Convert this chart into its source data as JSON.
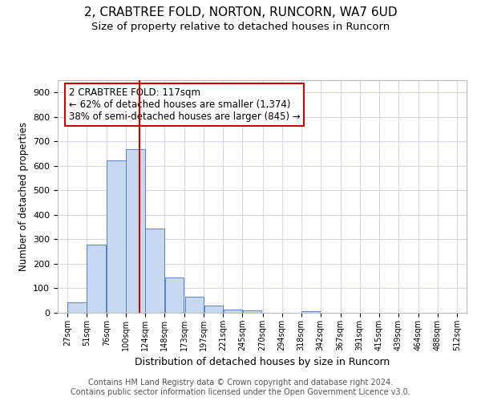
{
  "title_line1": "2, CRABTREE FOLD, NORTON, RUNCORN, WA7 6UD",
  "title_line2": "Size of property relative to detached houses in Runcorn",
  "xlabel": "Distribution of detached houses by size in Runcorn",
  "ylabel": "Number of detached properties",
  "bar_color": "#c6d9f0",
  "bar_edge_color": "#4472c4",
  "bins": [
    27,
    51,
    76,
    100,
    124,
    148,
    173,
    197,
    221,
    245,
    270,
    294,
    318,
    342,
    367,
    391,
    415,
    439,
    464,
    488,
    512
  ],
  "bin_labels": [
    "27sqm",
    "51sqm",
    "76sqm",
    "100sqm",
    "124sqm",
    "148sqm",
    "173sqm",
    "197sqm",
    "221sqm",
    "245sqm",
    "270sqm",
    "294sqm",
    "318sqm",
    "342sqm",
    "367sqm",
    "391sqm",
    "415sqm",
    "439sqm",
    "464sqm",
    "488sqm",
    "512sqm"
  ],
  "values": [
    42,
    280,
    622,
    668,
    345,
    145,
    65,
    28,
    13,
    10,
    0,
    0,
    8,
    0,
    0,
    0,
    0,
    0,
    0,
    0
  ],
  "vline_x": 117,
  "vline_color": "#cc0000",
  "annotation_text": "2 CRABTREE FOLD: 117sqm\n← 62% of detached houses are smaller (1,374)\n38% of semi-detached houses are larger (845) →",
  "annotation_box_color": "#ffffff",
  "annotation_box_edge_color": "#cc0000",
  "ylim": [
    0,
    950
  ],
  "yticks": [
    0,
    100,
    200,
    300,
    400,
    500,
    600,
    700,
    800,
    900
  ],
  "footer_line1": "Contains HM Land Registry data © Crown copyright and database right 2024.",
  "footer_line2": "Contains public sector information licensed under the Open Government Licence v3.0.",
  "background_color": "#ffffff",
  "grid_color": "#d0d8e8",
  "title1_fontsize": 11,
  "title2_fontsize": 9.5,
  "xlabel_fontsize": 9,
  "ylabel_fontsize": 8.5,
  "annotation_fontsize": 8.5,
  "footer_fontsize": 7
}
